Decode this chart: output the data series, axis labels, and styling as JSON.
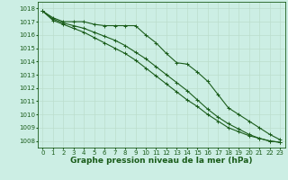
{
  "x": [
    0,
    1,
    2,
    3,
    4,
    5,
    6,
    7,
    8,
    9,
    10,
    11,
    12,
    13,
    14,
    15,
    16,
    17,
    18,
    19,
    20,
    21,
    22,
    23
  ],
  "line1": [
    1017.8,
    1017.3,
    1017.0,
    1017.0,
    1017.0,
    1016.8,
    1016.7,
    1016.7,
    1016.7,
    1016.7,
    1016.0,
    1015.4,
    1014.6,
    1013.9,
    1013.8,
    1013.2,
    1012.5,
    1011.5,
    1010.5,
    1010.0,
    1009.5,
    1009.0,
    1008.5,
    1008.1
  ],
  "line2": [
    1017.8,
    1017.2,
    1016.9,
    1016.7,
    1016.5,
    1016.2,
    1015.9,
    1015.6,
    1015.2,
    1014.7,
    1014.2,
    1013.6,
    1013.0,
    1012.4,
    1011.8,
    1011.1,
    1010.4,
    1009.8,
    1009.3,
    1008.9,
    1008.5,
    1008.2,
    1008.0,
    1007.9
  ],
  "line3": [
    1017.8,
    1017.1,
    1016.8,
    1016.5,
    1016.2,
    1015.8,
    1015.4,
    1015.0,
    1014.6,
    1014.1,
    1013.5,
    1012.9,
    1012.3,
    1011.7,
    1011.1,
    1010.6,
    1010.0,
    1009.5,
    1009.0,
    1008.7,
    1008.4,
    1008.2,
    1008.0,
    1007.9
  ],
  "line_color": "#1a5c1a",
  "bg_color": "#cceee4",
  "grid_color": "#bbddcc",
  "xlabel": "Graphe pression niveau de la mer (hPa)",
  "ylim": [
    1007.5,
    1018.5
  ],
  "xlim": [
    -0.5,
    23.5
  ],
  "yticks": [
    1008,
    1009,
    1010,
    1011,
    1012,
    1013,
    1014,
    1015,
    1016,
    1017,
    1018
  ],
  "xticks": [
    0,
    1,
    2,
    3,
    4,
    5,
    6,
    7,
    8,
    9,
    10,
    11,
    12,
    13,
    14,
    15,
    16,
    17,
    18,
    19,
    20,
    21,
    22,
    23
  ],
  "tick_fontsize": 5.0,
  "xlabel_fontsize": 6.5,
  "marker_size": 2.5,
  "line_width": 0.8
}
